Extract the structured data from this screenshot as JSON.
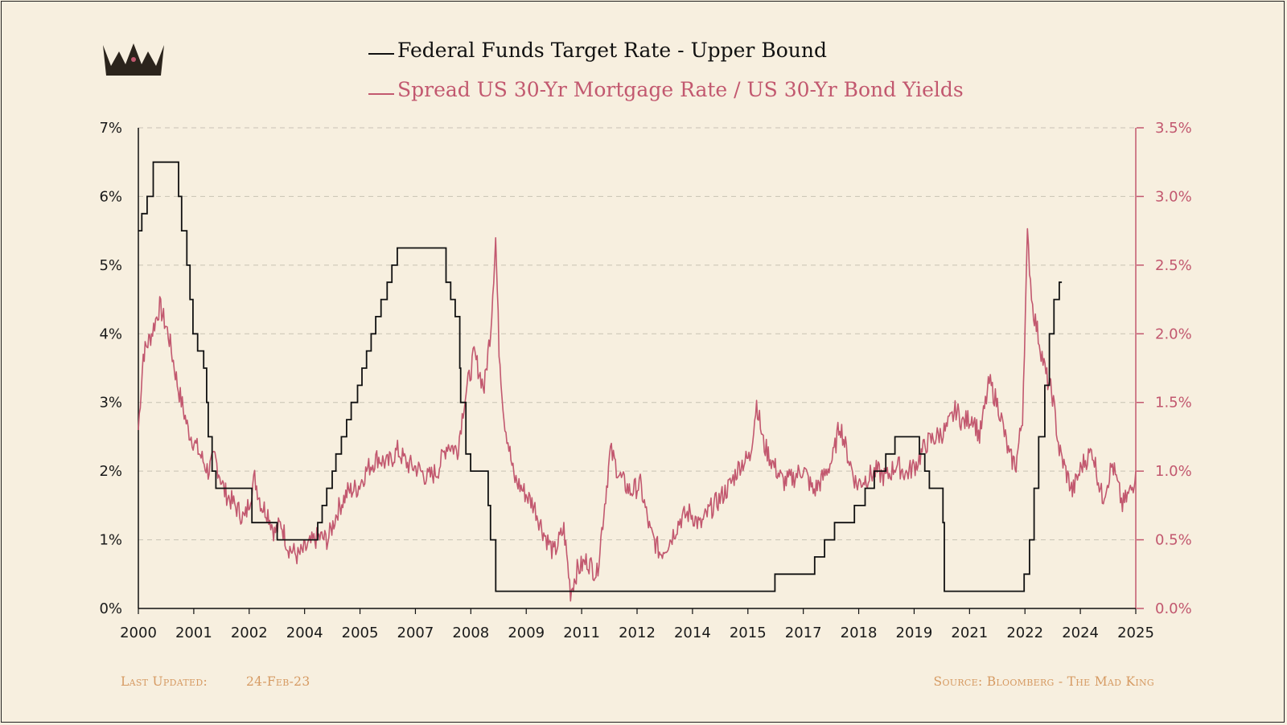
{
  "colors": {
    "background": "#f7efdf",
    "fed_line": "#111111",
    "spread_line": "#c2586f",
    "grid": "#c8c2b4",
    "footer": "#d69a62",
    "logo": "#2b241c"
  },
  "logo": {
    "icon": "crown-icon"
  },
  "footer": {
    "last_updated_label": "Last Updated:",
    "last_updated_value": "24-Feb-23",
    "source": "Source: Bloomberg - The Mad King"
  },
  "chart_data": {
    "type": "line",
    "legend_placement": "top-center",
    "grid": "horizontal-dashed",
    "x_ticks": [
      "2000",
      "2001",
      "2002",
      "2004",
      "2005",
      "2007",
      "2008",
      "2009",
      "2011",
      "2012",
      "2014",
      "2015",
      "2017",
      "2018",
      "2019",
      "2021",
      "2022",
      "2024",
      "2025"
    ],
    "xlim": [
      "2000-01-01",
      "2025-01-01"
    ],
    "y_left": {
      "ticks": [
        "0%",
        "1%",
        "2%",
        "3%",
        "4%",
        "5%",
        "6%",
        "7%"
      ],
      "range": [
        0,
        7
      ]
    },
    "y_right": {
      "ticks": [
        "0.0%",
        "0.5%",
        "1.0%",
        "1.5%",
        "2.0%",
        "2.5%",
        "3.0%",
        "3.5%"
      ],
      "range": [
        0,
        3.5
      ]
    },
    "series": [
      {
        "name": "Federal Funds Target Rate - Upper Bound",
        "axis": "left",
        "step": true,
        "points": [
          [
            "2000-01-01",
            5.5
          ],
          [
            "2000-02-02",
            5.75
          ],
          [
            "2000-03-21",
            6.0
          ],
          [
            "2000-05-16",
            6.5
          ],
          [
            "2001-01-03",
            6.0
          ],
          [
            "2001-01-31",
            5.5
          ],
          [
            "2001-03-20",
            5.0
          ],
          [
            "2001-04-18",
            4.5
          ],
          [
            "2001-05-15",
            4.0
          ],
          [
            "2001-06-27",
            3.75
          ],
          [
            "2001-08-21",
            3.5
          ],
          [
            "2001-09-17",
            3.0
          ],
          [
            "2001-10-02",
            2.5
          ],
          [
            "2001-11-06",
            2.0
          ],
          [
            "2001-12-11",
            1.75
          ],
          [
            "2002-11-06",
            1.25
          ],
          [
            "2003-06-25",
            1.0
          ],
          [
            "2004-06-30",
            1.25
          ],
          [
            "2004-08-10",
            1.5
          ],
          [
            "2004-09-21",
            1.75
          ],
          [
            "2004-11-10",
            2.0
          ],
          [
            "2004-12-14",
            2.25
          ],
          [
            "2005-02-02",
            2.5
          ],
          [
            "2005-03-22",
            2.75
          ],
          [
            "2005-05-03",
            3.0
          ],
          [
            "2005-06-30",
            3.25
          ],
          [
            "2005-08-09",
            3.5
          ],
          [
            "2005-09-20",
            3.75
          ],
          [
            "2005-11-01",
            4.0
          ],
          [
            "2005-12-13",
            4.25
          ],
          [
            "2006-01-31",
            4.5
          ],
          [
            "2006-03-28",
            4.75
          ],
          [
            "2006-05-10",
            5.0
          ],
          [
            "2006-06-29",
            5.25
          ],
          [
            "2007-09-18",
            4.75
          ],
          [
            "2007-10-31",
            4.5
          ],
          [
            "2007-12-11",
            4.25
          ],
          [
            "2008-01-22",
            3.5
          ],
          [
            "2008-01-30",
            3.0
          ],
          [
            "2008-03-18",
            2.25
          ],
          [
            "2008-04-30",
            2.0
          ],
          [
            "2008-10-08",
            1.5
          ],
          [
            "2008-10-29",
            1.0
          ],
          [
            "2008-12-16",
            0.25
          ],
          [
            "2015-12-16",
            0.5
          ],
          [
            "2016-12-14",
            0.75
          ],
          [
            "2017-03-15",
            1.0
          ],
          [
            "2017-06-14",
            1.25
          ],
          [
            "2017-12-13",
            1.5
          ],
          [
            "2018-03-21",
            1.75
          ],
          [
            "2018-06-13",
            2.0
          ],
          [
            "2018-09-26",
            2.25
          ],
          [
            "2018-12-19",
            2.5
          ],
          [
            "2019-07-31",
            2.25
          ],
          [
            "2019-09-18",
            2.0
          ],
          [
            "2019-10-30",
            1.75
          ],
          [
            "2020-03-03",
            1.25
          ],
          [
            "2020-03-15",
            0.25
          ],
          [
            "2022-03-16",
            0.5
          ],
          [
            "2022-05-04",
            1.0
          ],
          [
            "2022-06-15",
            1.75
          ],
          [
            "2022-07-27",
            2.5
          ],
          [
            "2022-09-21",
            3.25
          ],
          [
            "2022-11-02",
            4.0
          ],
          [
            "2022-12-14",
            4.5
          ],
          [
            "2023-02-01",
            4.75
          ],
          [
            "2023-02-24",
            4.75
          ]
        ]
      },
      {
        "name": "Spread US 30-Yr Mortgage Rate / US 30-Yr Bond Yields",
        "axis": "right",
        "step": false,
        "points": [
          [
            "2000-01-01",
            1.3
          ],
          [
            "2000-02-15",
            1.85
          ],
          [
            "2000-05-01",
            2.0
          ],
          [
            "2000-07-15",
            2.2
          ],
          [
            "2000-10-01",
            2.0
          ],
          [
            "2001-01-01",
            1.6
          ],
          [
            "2001-04-01",
            1.3
          ],
          [
            "2001-07-01",
            1.15
          ],
          [
            "2001-10-01",
            1.0
          ],
          [
            "2001-12-01",
            1.1
          ],
          [
            "2002-03-01",
            0.85
          ],
          [
            "2002-06-01",
            0.75
          ],
          [
            "2002-09-01",
            0.65
          ],
          [
            "2002-12-01",
            0.95
          ],
          [
            "2003-02-01",
            0.75
          ],
          [
            "2003-04-01",
            0.7
          ],
          [
            "2003-06-01",
            0.55
          ],
          [
            "2003-08-01",
            0.62
          ],
          [
            "2003-10-01",
            0.45
          ],
          [
            "2004-01-01",
            0.38
          ],
          [
            "2004-04-01",
            0.45
          ],
          [
            "2004-07-01",
            0.52
          ],
          [
            "2004-10-01",
            0.5
          ],
          [
            "2005-01-01",
            0.72
          ],
          [
            "2005-04-01",
            0.85
          ],
          [
            "2005-07-01",
            0.88
          ],
          [
            "2005-10-01",
            1.02
          ],
          [
            "2006-01-01",
            1.1
          ],
          [
            "2006-04-01",
            1.05
          ],
          [
            "2006-07-01",
            1.15
          ],
          [
            "2006-10-01",
            1.05
          ],
          [
            "2007-01-01",
            1.02
          ],
          [
            "2007-04-01",
            0.95
          ],
          [
            "2007-07-01",
            1.0
          ],
          [
            "2007-10-01",
            1.2
          ],
          [
            "2008-01-01",
            1.15
          ],
          [
            "2008-03-01",
            1.5
          ],
          [
            "2008-06-01",
            1.85
          ],
          [
            "2008-09-01",
            1.6
          ],
          [
            "2008-11-01",
            2.05
          ],
          [
            "2008-12-15",
            2.7
          ],
          [
            "2009-01-15",
            1.9
          ],
          [
            "2009-03-01",
            1.4
          ],
          [
            "2009-06-01",
            0.95
          ],
          [
            "2009-09-01",
            0.85
          ],
          [
            "2009-12-01",
            0.75
          ],
          [
            "2010-03-01",
            0.55
          ],
          [
            "2010-06-01",
            0.4
          ],
          [
            "2010-09-01",
            0.58
          ],
          [
            "2010-11-01",
            0.12
          ],
          [
            "2011-01-01",
            0.28
          ],
          [
            "2011-04-01",
            0.35
          ],
          [
            "2011-07-01",
            0.25
          ],
          [
            "2011-09-01",
            0.7
          ],
          [
            "2011-11-01",
            1.15
          ],
          [
            "2012-02-01",
            0.95
          ],
          [
            "2012-05-01",
            0.85
          ],
          [
            "2012-08-01",
            0.9
          ],
          [
            "2012-11-01",
            0.55
          ],
          [
            "2013-02-01",
            0.4
          ],
          [
            "2013-05-01",
            0.5
          ],
          [
            "2013-08-01",
            0.65
          ],
          [
            "2013-11-01",
            0.7
          ],
          [
            "2014-02-01",
            0.6
          ],
          [
            "2014-05-01",
            0.72
          ],
          [
            "2014-08-01",
            0.8
          ],
          [
            "2014-11-01",
            0.9
          ],
          [
            "2015-02-01",
            1.05
          ],
          [
            "2015-05-01",
            1.1
          ],
          [
            "2015-07-01",
            1.5
          ],
          [
            "2015-09-01",
            1.2
          ],
          [
            "2015-12-01",
            1.05
          ],
          [
            "2016-03-01",
            0.92
          ],
          [
            "2016-06-01",
            0.95
          ],
          [
            "2016-09-01",
            1.02
          ],
          [
            "2016-12-01",
            0.85
          ],
          [
            "2017-03-01",
            0.95
          ],
          [
            "2017-06-01",
            1.1
          ],
          [
            "2017-08-01",
            1.35
          ],
          [
            "2017-10-01",
            1.15
          ],
          [
            "2018-01-01",
            0.9
          ],
          [
            "2018-04-01",
            0.95
          ],
          [
            "2018-07-01",
            1.0
          ],
          [
            "2018-10-01",
            0.95
          ],
          [
            "2019-01-01",
            1.05
          ],
          [
            "2019-04-01",
            0.98
          ],
          [
            "2019-07-01",
            1.05
          ],
          [
            "2019-10-01",
            1.2
          ],
          [
            "2020-01-01",
            1.25
          ],
          [
            "2020-04-01",
            1.3
          ],
          [
            "2020-07-01",
            1.45
          ],
          [
            "2020-09-01",
            1.35
          ],
          [
            "2020-12-01",
            1.4
          ],
          [
            "2021-02-01",
            1.25
          ],
          [
            "2021-05-01",
            1.65
          ],
          [
            "2021-08-01",
            1.45
          ],
          [
            "2021-11-01",
            1.1
          ],
          [
            "2022-01-01",
            1.05
          ],
          [
            "2022-03-01",
            1.4
          ],
          [
            "2022-04-15",
            2.7
          ],
          [
            "2022-06-01",
            2.2
          ],
          [
            "2022-08-01",
            1.95
          ],
          [
            "2022-10-01",
            1.7
          ],
          [
            "2022-12-01",
            1.55
          ],
          [
            "2023-02-01",
            1.15
          ],
          [
            "2023-04-01",
            1.0
          ],
          [
            "2023-06-01",
            0.85
          ],
          [
            "2023-09-01",
            1.05
          ],
          [
            "2023-12-01",
            1.15
          ],
          [
            "2024-03-01",
            0.8
          ],
          [
            "2024-06-01",
            1.05
          ],
          [
            "2024-09-01",
            0.75
          ],
          [
            "2024-12-01",
            0.88
          ],
          [
            "2025-01-01",
            1.0
          ]
        ]
      }
    ]
  }
}
